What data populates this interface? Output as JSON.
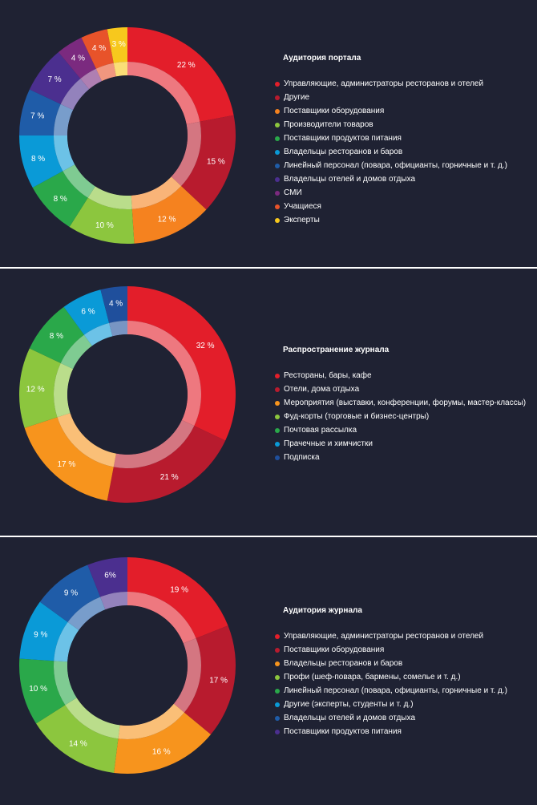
{
  "colors": {
    "background": "#1f2233",
    "inner_ring": "#ffffff",
    "center": "#1f2233"
  },
  "chart_data": [
    {
      "type": "pie",
      "title": "Аудитория портала",
      "legend_position": "right",
      "categories": [
        "Управляющие, администраторы ресторанов и отелей",
        "Другие",
        "Поставщики оборудования",
        "Производители товаров",
        "Поставщики продуктов питания",
        "Владельцы ресторанов и баров",
        "Линейный персонал (повара, официанты, горничные и т. д.)",
        "Владельцы отелей и домов отдыха",
        "СМИ",
        "Учащиеся",
        "Эксперты"
      ],
      "values": [
        22,
        15,
        12,
        10,
        8,
        8,
        7,
        7,
        4,
        4,
        3
      ],
      "labels": [
        "22 %",
        "15 %",
        "12 %",
        "10 %",
        "8 %",
        "8 %",
        "7 %",
        "7 %",
        "4 %",
        "4 %",
        "3 %"
      ],
      "colors": [
        "#e31e2a",
        "#b81b2e",
        "#f5821f",
        "#8cc63e",
        "#2aa84a",
        "#0a9ad7",
        "#1f5ca8",
        "#4b2f8f",
        "#7b2a7f",
        "#e8532a",
        "#f7c81d"
      ]
    },
    {
      "type": "pie",
      "title": "Распространение журнала",
      "legend_position": "right",
      "categories": [
        "Рестораны, бары, кафе",
        "Отели, дома отдыха",
        "Мероприятия (выставки, конференции, форумы, мастер-классы)",
        "Фуд-корты (торговые и бизнес-центры)",
        "Почтовая рассылка",
        "Прачечные и химчистки",
        "Подписка"
      ],
      "values": [
        32,
        21,
        17,
        12,
        8,
        6,
        4
      ],
      "labels": [
        "32 %",
        "21 %",
        "17 %",
        "12 %",
        "8 %",
        "6 %",
        "4 %"
      ],
      "colors": [
        "#e31e2a",
        "#b81b2e",
        "#f7941d",
        "#8cc63e",
        "#2aa84a",
        "#0a9ad7",
        "#1f4f9c"
      ]
    },
    {
      "type": "pie",
      "title": "Аудитория журнала",
      "legend_position": "right",
      "categories": [
        "Управляющие, администраторы ресторанов и отелей",
        "Поставщики оборудования",
        "Владельцы ресторанов и баров",
        "Профи (шеф-повара, бармены, сомелье и т. д.)",
        "Линейный персонал (повара, официанты, горничные и т. д.)",
        "Другие (эксперты, студенты и т. д.)",
        "Владельцы отелей и домов отдыха",
        "Поставщики продуктов питания"
      ],
      "values": [
        19,
        17,
        16,
        14,
        10,
        9,
        9,
        6
      ],
      "labels": [
        "19 %",
        "17 %",
        "16 %",
        "14 %",
        "10 %",
        "9 %",
        "9 %",
        "6%"
      ],
      "colors": [
        "#e31e2a",
        "#b81b2e",
        "#f7941d",
        "#8cc63e",
        "#2aa84a",
        "#0a9ad7",
        "#1f5ca8",
        "#4b2f8f"
      ]
    }
  ]
}
